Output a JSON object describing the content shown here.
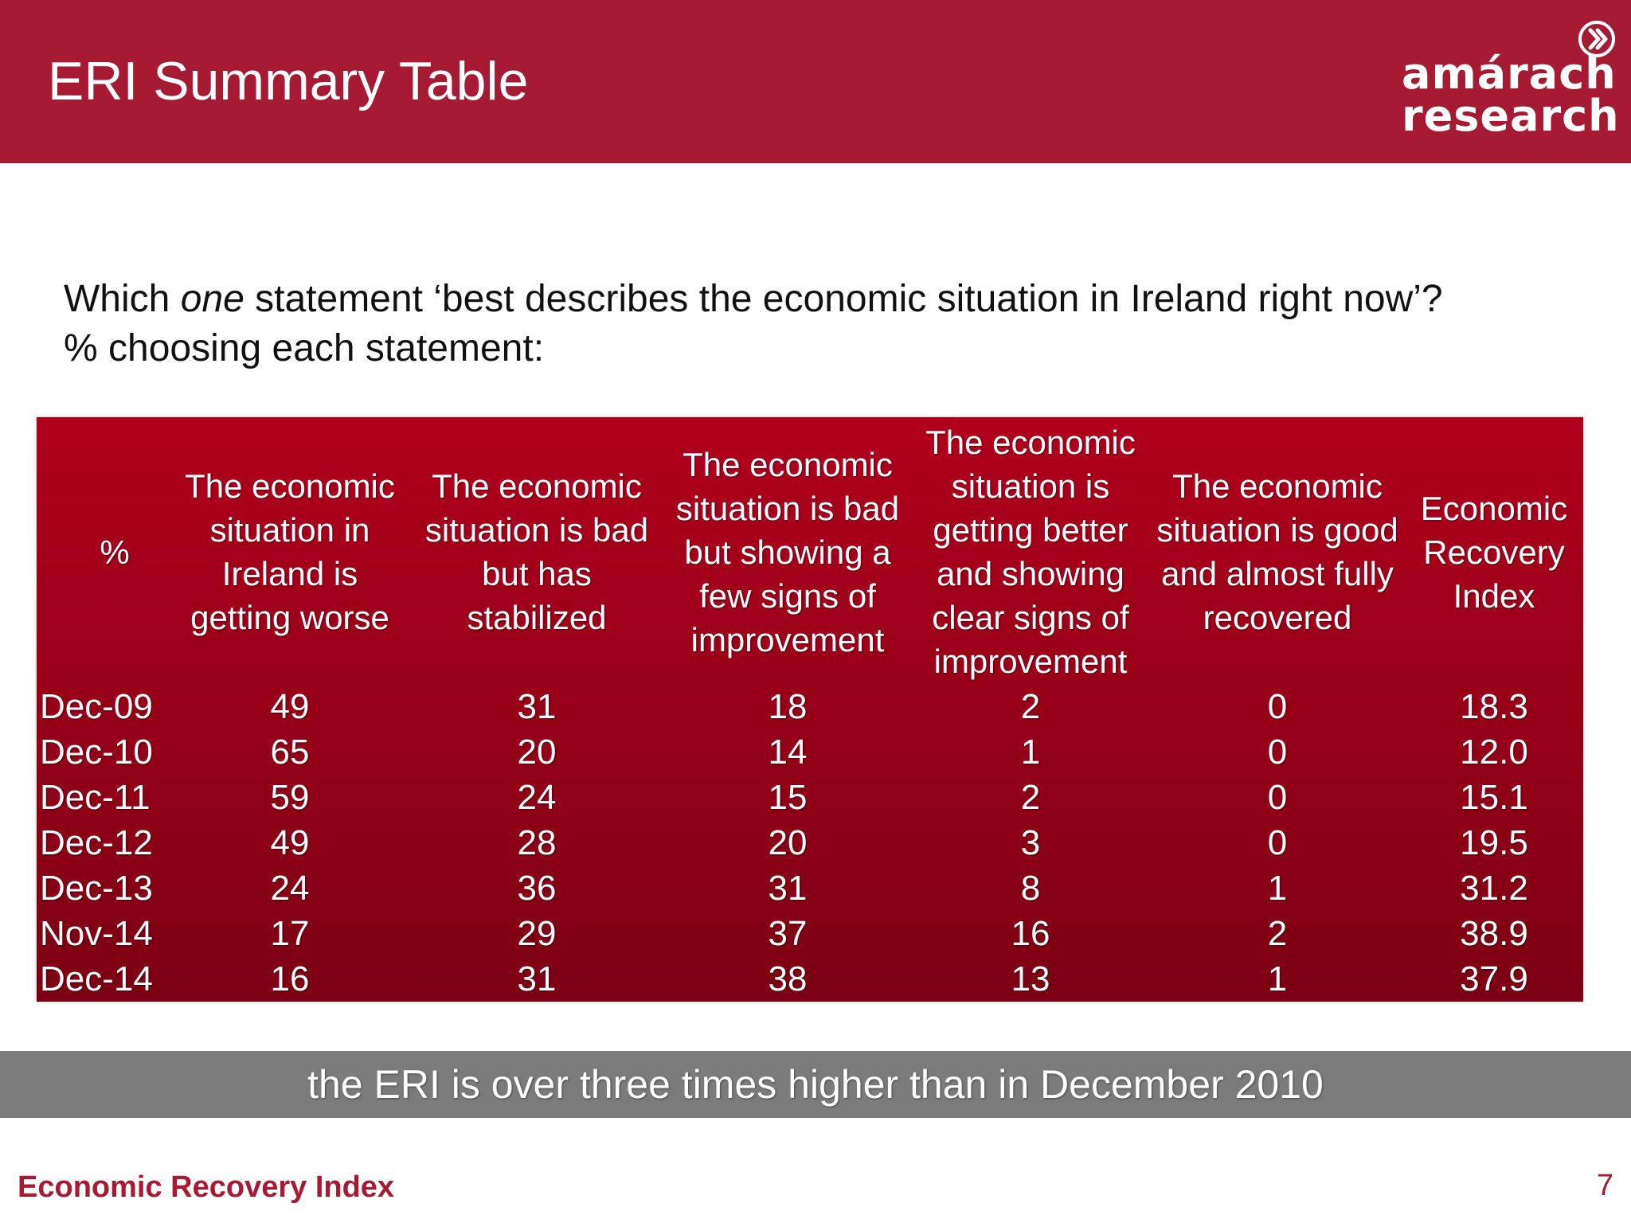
{
  "header": {
    "title": "ERI Summary Table",
    "bg_color": "#a71a34"
  },
  "logo": {
    "line1": "amárach",
    "line2": "research",
    "icon": "chevron-circle-icon"
  },
  "question": {
    "line1_before": "Which ",
    "line1_emph": "one",
    "line1_after": " statement ‘best describes the economic situation in Ireland right now’?",
    "line2": "% choosing each statement:"
  },
  "table": {
    "bg_color": "#9a0119",
    "headers": [
      "%",
      "The economic situation in Ireland is getting worse",
      "The economic situation is bad but has stabilized",
      "The economic situation is bad but showing a few signs of improvement",
      "The economic situation is getting better and showing clear signs of improvement",
      "The economic situation is good and almost fully recovered",
      "Economic Recovery Index"
    ],
    "rows": [
      [
        "Dec-09",
        "49",
        "31",
        "18",
        "2",
        "0",
        "18.3"
      ],
      [
        "Dec-10",
        "65",
        "20",
        "14",
        "1",
        "0",
        "12.0"
      ],
      [
        "Dec-11",
        "59",
        "24",
        "15",
        "2",
        "0",
        "15.1"
      ],
      [
        "Dec-12",
        "49",
        "28",
        "20",
        "3",
        "0",
        "19.5"
      ],
      [
        "Dec-13",
        "24",
        "36",
        "31",
        "8",
        "1",
        "31.2"
      ],
      [
        "Nov-14",
        "17",
        "29",
        "37",
        "16",
        "2",
        "38.9"
      ],
      [
        "Dec-14",
        "16",
        "31",
        "38",
        "13",
        "1",
        "37.9"
      ]
    ]
  },
  "banner": {
    "text": "the ERI is over three times higher than in December 2010",
    "bg_color": "#7b7b7b"
  },
  "footer": {
    "left": "Economic Recovery Index",
    "page_number": "7"
  }
}
